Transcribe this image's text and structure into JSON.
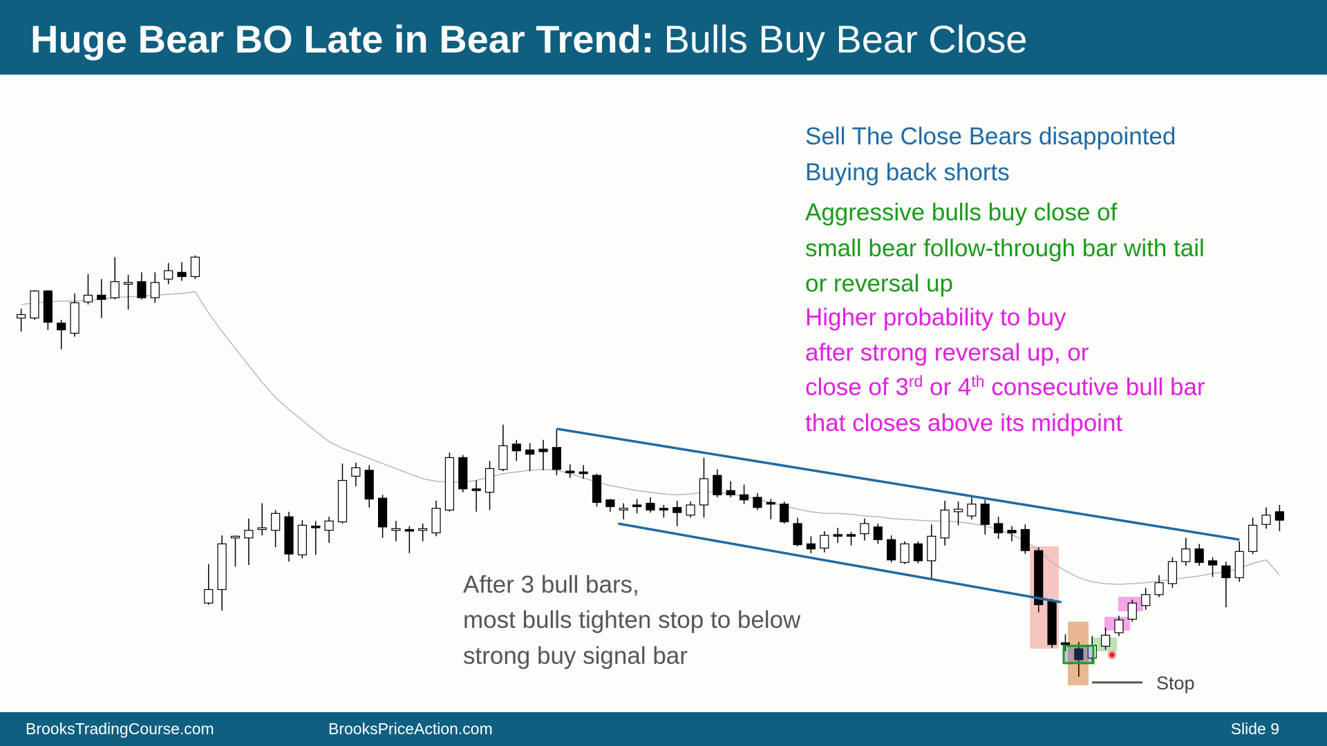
{
  "header": {
    "title_bold": "Huge Bear BO Late in Bear Trend:",
    "title_regular": "Bulls Buy Bear Close"
  },
  "annotations": {
    "blue": [
      "Sell The Close Bears disappointed",
      "Buying back shorts"
    ],
    "green": [
      "Aggressive bulls buy close of",
      "small bear follow-through bar with tail",
      "or reversal up"
    ],
    "magenta": [
      "Higher probability to buy",
      "after strong reversal up, or"
    ],
    "magenta_line3": [
      "close of 3",
      "rd",
      " or 4",
      "th",
      " consecutive bull bar"
    ],
    "magenta_line4": "that closes above its midpoint",
    "gray": [
      "After 3 bull bars,",
      "most bulls tighten stop to below",
      "strong buy signal bar"
    ],
    "stop": "Stop"
  },
  "footer": {
    "left": "BrooksTradingCourse.com",
    "middle": "BrooksPriceAction.com",
    "slide": "Slide  9"
  },
  "chart_data": {
    "type": "candlestick",
    "bull_color": "#ffffff",
    "bear_color": "#000000",
    "ema_color": "#b8b8b8",
    "trendline_color": "#1f6aa5",
    "open": [
      624,
      624,
      656,
      618,
      606,
      643,
      651,
      648,
      664,
      667,
      648,
      670,
      678,
      673,
      287,
      303,
      364,
      364,
      374,
      373,
      389,
      344,
      378,
      373,
      383,
      437,
      444,
      411,
      373,
      374,
      373,
      370,
      397,
      459,
      422,
      418,
      445,
      475,
      468,
      469,
      471,
      443,
      442,
      438,
      409,
      397,
      403,
      405,
      399,
      400,
      391,
      403,
      438,
      420,
      415,
      412,
      406,
      404,
      381,
      357,
      352,
      368,
      368,
      369,
      377,
      362,
      335,
      357,
      337,
      364,
      395,
      390,
      404,
      381,
      373,
      374,
      349,
      289,
      240,
      233,
      222,
      236,
      252,
      268,
      284,
      297,
      310,
      336,
      351,
      337,
      331,
      317,
      348,
      380,
      395
    ],
    "high": [
      635,
      657,
      657,
      622,
      653,
      676,
      670,
      696,
      675,
      678,
      678,
      689,
      690,
      698,
      333,
      367,
      367,
      387,
      405,
      397,
      395,
      385,
      384,
      389,
      452,
      453,
      450,
      415,
      384,
      378,
      381,
      408,
      465,
      462,
      432,
      455,
      498,
      480,
      476,
      480,
      493,
      451,
      450,
      440,
      410,
      405,
      410,
      412,
      403,
      408,
      407,
      459,
      445,
      431,
      427,
      417,
      410,
      407,
      388,
      366,
      372,
      376,
      371,
      387,
      381,
      367,
      360,
      360,
      380,
      408,
      407,
      412,
      409,
      389,
      378,
      380,
      353,
      292,
      250,
      241,
      248,
      258,
      272,
      291,
      305,
      320,
      341,
      364,
      357,
      341,
      336,
      360,
      388,
      400,
      403
    ],
    "low": [
      608,
      622,
      610,
      587,
      602,
      640,
      624,
      646,
      634,
      646,
      642,
      664,
      668,
      670,
      285,
      278,
      330,
      332,
      367,
      353,
      336,
      340,
      344,
      358,
      381,
      425,
      400,
      364,
      360,
      346,
      360,
      366,
      395,
      418,
      395,
      397,
      443,
      455,
      443,
      444,
      438,
      435,
      434,
      401,
      395,
      386,
      393,
      394,
      388,
      378,
      388,
      388,
      412,
      412,
      404,
      397,
      386,
      381,
      354,
      346,
      347,
      358,
      355,
      361,
      357,
      335,
      333,
      334,
      316,
      355,
      379,
      386,
      368,
      363,
      360,
      345,
      276,
      234,
      230,
      200,
      218,
      232,
      248,
      265,
      279,
      294,
      305,
      331,
      331,
      318,
      282,
      312,
      345,
      375,
      372
    ],
    "close": [
      628,
      656,
      619,
      610,
      642,
      651,
      646,
      667,
      666,
      648,
      666,
      680,
      673,
      696,
      303,
      357,
      366,
      373,
      376,
      393,
      345,
      379,
      376,
      384,
      432,
      447,
      410,
      377,
      375,
      372,
      375,
      399,
      459,
      422,
      420,
      446,
      473,
      467,
      463,
      466,
      445,
      441,
      440,
      406,
      401,
      399,
      401,
      397,
      397,
      394,
      403,
      434,
      415,
      415,
      409,
      400,
      404,
      383,
      356,
      351,
      367,
      366,
      366,
      381,
      362,
      338,
      357,
      337,
      366,
      397,
      398,
      404,
      380,
      370,
      370,
      349,
      285,
      238,
      238,
      220,
      237,
      249,
      267,
      287,
      297,
      311,
      336,
      351,
      335,
      332,
      317,
      348,
      379,
      391,
      385
    ],
    "ema": [
      640,
      642,
      643,
      644,
      644,
      645,
      646,
      648,
      649,
      650,
      651,
      652,
      653,
      655,
      630,
      608,
      588,
      568,
      548,
      530,
      516,
      503,
      490,
      478,
      470,
      464,
      458,
      452,
      446,
      440,
      434,
      431,
      430,
      430,
      432,
      436,
      440,
      442,
      444,
      445,
      444,
      440,
      435,
      430,
      426,
      423,
      420,
      418,
      416,
      415,
      416,
      418,
      418,
      416,
      413,
      410,
      406,
      402,
      398,
      395,
      393,
      393,
      392,
      390,
      389,
      387,
      386,
      385,
      384,
      384,
      383,
      381,
      378,
      374,
      368,
      360,
      350,
      335,
      325,
      317,
      312,
      310,
      309,
      310,
      311,
      313,
      315,
      317,
      319,
      322,
      324,
      328,
      334,
      338,
      320
    ],
    "trendlines": [
      {
        "x": [
          40,
          91
        ],
        "y": [
          493,
          362
        ]
      },
      {
        "x": [
          44.6,
          77.7
        ],
        "y": [
          381,
          288
        ]
      }
    ]
  }
}
